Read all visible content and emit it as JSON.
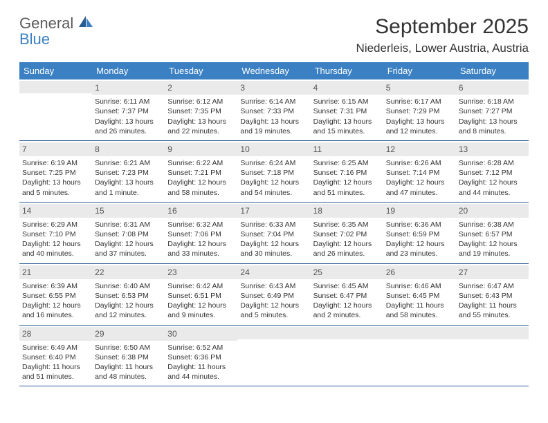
{
  "logo": {
    "line1": "General",
    "line2": "Blue"
  },
  "title": "September 2025",
  "location": "Niederleis, Lower Austria, Austria",
  "colors": {
    "header_bg": "#3a80c3",
    "header_text": "#ffffff",
    "daynum_bg": "#eaeaea",
    "week_border": "#2a5d8f",
    "text": "#333333",
    "logo_gray": "#5a5a5a",
    "logo_blue": "#3a80c3"
  },
  "day_names": [
    "Sunday",
    "Monday",
    "Tuesday",
    "Wednesday",
    "Thursday",
    "Friday",
    "Saturday"
  ],
  "weeks": [
    [
      {
        "empty": true
      },
      {
        "day": "1",
        "sunrise": "Sunrise: 6:11 AM",
        "sunset": "Sunset: 7:37 PM",
        "daylight": "Daylight: 13 hours and 26 minutes."
      },
      {
        "day": "2",
        "sunrise": "Sunrise: 6:12 AM",
        "sunset": "Sunset: 7:35 PM",
        "daylight": "Daylight: 13 hours and 22 minutes."
      },
      {
        "day": "3",
        "sunrise": "Sunrise: 6:14 AM",
        "sunset": "Sunset: 7:33 PM",
        "daylight": "Daylight: 13 hours and 19 minutes."
      },
      {
        "day": "4",
        "sunrise": "Sunrise: 6:15 AM",
        "sunset": "Sunset: 7:31 PM",
        "daylight": "Daylight: 13 hours and 15 minutes."
      },
      {
        "day": "5",
        "sunrise": "Sunrise: 6:17 AM",
        "sunset": "Sunset: 7:29 PM",
        "daylight": "Daylight: 13 hours and 12 minutes."
      },
      {
        "day": "6",
        "sunrise": "Sunrise: 6:18 AM",
        "sunset": "Sunset: 7:27 PM",
        "daylight": "Daylight: 13 hours and 8 minutes."
      }
    ],
    [
      {
        "day": "7",
        "sunrise": "Sunrise: 6:19 AM",
        "sunset": "Sunset: 7:25 PM",
        "daylight": "Daylight: 13 hours and 5 minutes."
      },
      {
        "day": "8",
        "sunrise": "Sunrise: 6:21 AM",
        "sunset": "Sunset: 7:23 PM",
        "daylight": "Daylight: 13 hours and 1 minute."
      },
      {
        "day": "9",
        "sunrise": "Sunrise: 6:22 AM",
        "sunset": "Sunset: 7:21 PM",
        "daylight": "Daylight: 12 hours and 58 minutes."
      },
      {
        "day": "10",
        "sunrise": "Sunrise: 6:24 AM",
        "sunset": "Sunset: 7:18 PM",
        "daylight": "Daylight: 12 hours and 54 minutes."
      },
      {
        "day": "11",
        "sunrise": "Sunrise: 6:25 AM",
        "sunset": "Sunset: 7:16 PM",
        "daylight": "Daylight: 12 hours and 51 minutes."
      },
      {
        "day": "12",
        "sunrise": "Sunrise: 6:26 AM",
        "sunset": "Sunset: 7:14 PM",
        "daylight": "Daylight: 12 hours and 47 minutes."
      },
      {
        "day": "13",
        "sunrise": "Sunrise: 6:28 AM",
        "sunset": "Sunset: 7:12 PM",
        "daylight": "Daylight: 12 hours and 44 minutes."
      }
    ],
    [
      {
        "day": "14",
        "sunrise": "Sunrise: 6:29 AM",
        "sunset": "Sunset: 7:10 PM",
        "daylight": "Daylight: 12 hours and 40 minutes."
      },
      {
        "day": "15",
        "sunrise": "Sunrise: 6:31 AM",
        "sunset": "Sunset: 7:08 PM",
        "daylight": "Daylight: 12 hours and 37 minutes."
      },
      {
        "day": "16",
        "sunrise": "Sunrise: 6:32 AM",
        "sunset": "Sunset: 7:06 PM",
        "daylight": "Daylight: 12 hours and 33 minutes."
      },
      {
        "day": "17",
        "sunrise": "Sunrise: 6:33 AM",
        "sunset": "Sunset: 7:04 PM",
        "daylight": "Daylight: 12 hours and 30 minutes."
      },
      {
        "day": "18",
        "sunrise": "Sunrise: 6:35 AM",
        "sunset": "Sunset: 7:02 PM",
        "daylight": "Daylight: 12 hours and 26 minutes."
      },
      {
        "day": "19",
        "sunrise": "Sunrise: 6:36 AM",
        "sunset": "Sunset: 6:59 PM",
        "daylight": "Daylight: 12 hours and 23 minutes."
      },
      {
        "day": "20",
        "sunrise": "Sunrise: 6:38 AM",
        "sunset": "Sunset: 6:57 PM",
        "daylight": "Daylight: 12 hours and 19 minutes."
      }
    ],
    [
      {
        "day": "21",
        "sunrise": "Sunrise: 6:39 AM",
        "sunset": "Sunset: 6:55 PM",
        "daylight": "Daylight: 12 hours and 16 minutes."
      },
      {
        "day": "22",
        "sunrise": "Sunrise: 6:40 AM",
        "sunset": "Sunset: 6:53 PM",
        "daylight": "Daylight: 12 hours and 12 minutes."
      },
      {
        "day": "23",
        "sunrise": "Sunrise: 6:42 AM",
        "sunset": "Sunset: 6:51 PM",
        "daylight": "Daylight: 12 hours and 9 minutes."
      },
      {
        "day": "24",
        "sunrise": "Sunrise: 6:43 AM",
        "sunset": "Sunset: 6:49 PM",
        "daylight": "Daylight: 12 hours and 5 minutes."
      },
      {
        "day": "25",
        "sunrise": "Sunrise: 6:45 AM",
        "sunset": "Sunset: 6:47 PM",
        "daylight": "Daylight: 12 hours and 2 minutes."
      },
      {
        "day": "26",
        "sunrise": "Sunrise: 6:46 AM",
        "sunset": "Sunset: 6:45 PM",
        "daylight": "Daylight: 11 hours and 58 minutes."
      },
      {
        "day": "27",
        "sunrise": "Sunrise: 6:47 AM",
        "sunset": "Sunset: 6:43 PM",
        "daylight": "Daylight: 11 hours and 55 minutes."
      }
    ],
    [
      {
        "day": "28",
        "sunrise": "Sunrise: 6:49 AM",
        "sunset": "Sunset: 6:40 PM",
        "daylight": "Daylight: 11 hours and 51 minutes."
      },
      {
        "day": "29",
        "sunrise": "Sunrise: 6:50 AM",
        "sunset": "Sunset: 6:38 PM",
        "daylight": "Daylight: 11 hours and 48 minutes."
      },
      {
        "day": "30",
        "sunrise": "Sunrise: 6:52 AM",
        "sunset": "Sunset: 6:36 PM",
        "daylight": "Daylight: 11 hours and 44 minutes."
      },
      {
        "empty": true
      },
      {
        "empty": true
      },
      {
        "empty": true
      },
      {
        "empty": true
      }
    ]
  ]
}
